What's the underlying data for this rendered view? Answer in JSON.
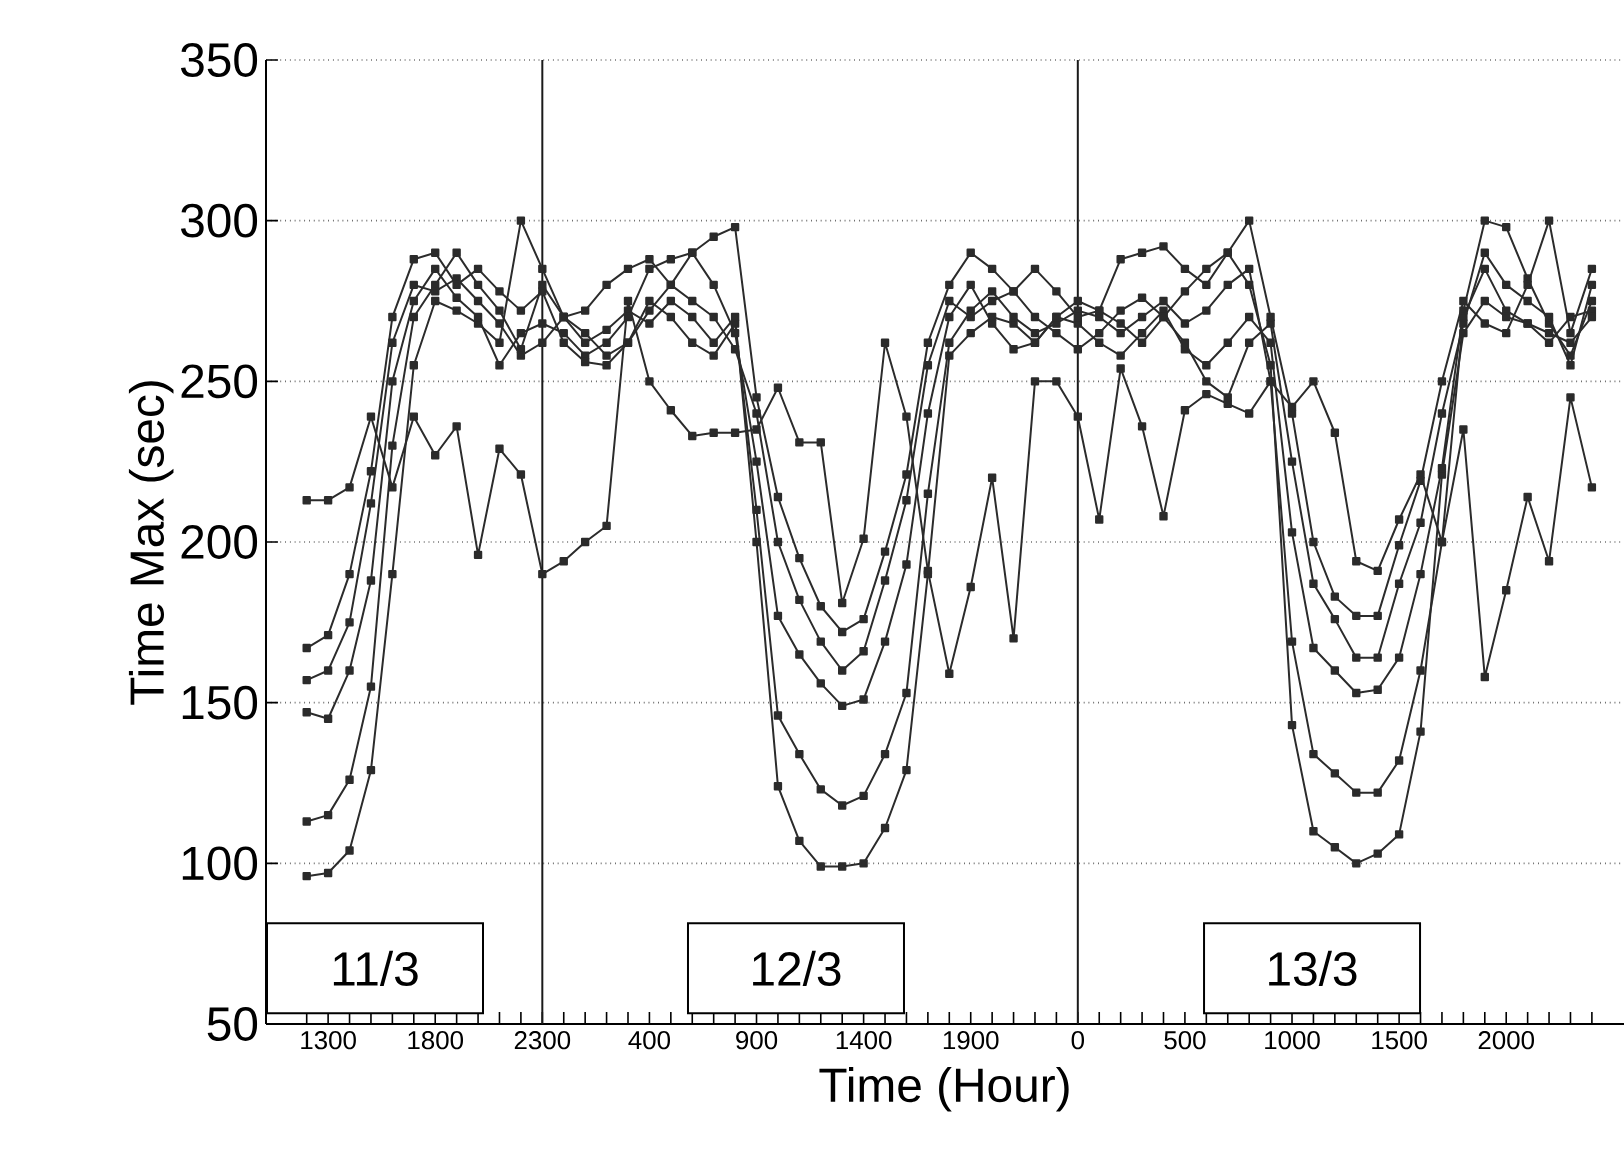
{
  "chart_data": {
    "type": "line",
    "xlabel": "Time (Hour)",
    "ylabel": "Time Max (sec)",
    "annotations": [
      "11/3",
      "12/3",
      "13/3"
    ],
    "categories": [
      null,
      "1300",
      null,
      null,
      null,
      null,
      "1800",
      null,
      null,
      null,
      null,
      "2300",
      null,
      null,
      null,
      null,
      "400",
      null,
      null,
      null,
      null,
      "900",
      null,
      null,
      null,
      null,
      "1400",
      null,
      null,
      null,
      null,
      "1900",
      null,
      null,
      null,
      null,
      "0",
      null,
      null,
      null,
      null,
      "500",
      null,
      null,
      null,
      null,
      "1000",
      null,
      null,
      null,
      null,
      "1500",
      null,
      null,
      null,
      null,
      "2000",
      null,
      null,
      null,
      null
    ],
    "series": [
      {
        "color": "#2b2b2b",
        "values": [
          213,
          213,
          217,
          239,
          217,
          239,
          227,
          236,
          196,
          229,
          221,
          190,
          194,
          200,
          205,
          275,
          250,
          241,
          233,
          234,
          234,
          235,
          248,
          231,
          231,
          181,
          201,
          262,
          239,
          191,
          159,
          186,
          220,
          170,
          250,
          250,
          239,
          207,
          254,
          236,
          208,
          241,
          246,
          243,
          240,
          250,
          242,
          250,
          234,
          194,
          191,
          207,
          221,
          200,
          235,
          158,
          185,
          214,
          194,
          245,
          217
        ]
      },
      {
        "color": "#2b2b2b",
        "values": [
          96,
          97,
          104,
          129,
          190,
          255,
          275,
          272,
          268,
          262,
          300,
          285,
          270,
          262,
          266,
          272,
          268,
          275,
          270,
          262,
          270,
          200,
          124,
          107,
          99,
          99,
          100,
          111,
          129,
          190,
          258,
          265,
          270,
          268,
          262,
          270,
          275,
          272,
          268,
          262,
          270,
          278,
          285,
          290,
          280,
          255,
          143,
          110,
          105,
          100,
          103,
          109,
          141,
          221,
          265,
          275,
          270,
          268,
          262,
          270,
          272
        ]
      },
      {
        "color": "#2b2b2b",
        "values": [
          113,
          115,
          126,
          155,
          230,
          270,
          280,
          290,
          280,
          272,
          260,
          280,
          270,
          265,
          258,
          262,
          275,
          270,
          262,
          258,
          268,
          210,
          146,
          134,
          123,
          118,
          121,
          134,
          153,
          215,
          262,
          272,
          278,
          270,
          265,
          268,
          272,
          270,
          265,
          270,
          275,
          268,
          272,
          280,
          285,
          250,
          169,
          134,
          128,
          122,
          122,
          132,
          160,
          200,
          270,
          285,
          272,
          268,
          265,
          262,
          270
        ]
      },
      {
        "color": "#2b2b2b",
        "values": [
          147,
          145,
          160,
          188,
          250,
          275,
          285,
          276,
          270,
          255,
          265,
          268,
          265,
          258,
          262,
          270,
          285,
          288,
          290,
          280,
          265,
          225,
          177,
          165,
          156,
          149,
          151,
          169,
          193,
          240,
          270,
          280,
          268,
          260,
          262,
          270,
          268,
          262,
          258,
          265,
          272,
          260,
          255,
          262,
          270,
          262,
          203,
          167,
          160,
          153,
          154,
          164,
          190,
          223,
          272,
          300,
          298,
          282,
          268,
          258,
          275
        ]
      },
      {
        "color": "#2b2b2b",
        "values": [
          157,
          160,
          175,
          212,
          262,
          280,
          278,
          282,
          275,
          268,
          258,
          262,
          270,
          272,
          280,
          285,
          288,
          280,
          275,
          270,
          260,
          240,
          200,
          182,
          169,
          160,
          166,
          188,
          213,
          255,
          275,
          270,
          275,
          278,
          270,
          265,
          260,
          265,
          272,
          276,
          270,
          262,
          250,
          245,
          262,
          268,
          225,
          187,
          176,
          164,
          164,
          187,
          206,
          240,
          268,
          290,
          280,
          275,
          270,
          255,
          280
        ]
      },
      {
        "color": "#2b2b2b",
        "values": [
          167,
          171,
          190,
          222,
          270,
          288,
          290,
          280,
          285,
          278,
          272,
          278,
          262,
          256,
          255,
          262,
          272,
          280,
          290,
          295,
          298,
          245,
          214,
          195,
          180,
          172,
          176,
          197,
          221,
          262,
          280,
          290,
          285,
          278,
          285,
          278,
          270,
          272,
          288,
          290,
          292,
          285,
          280,
          290,
          300,
          270,
          240,
          200,
          183,
          177,
          177,
          199,
          219,
          250,
          275,
          268,
          265,
          280,
          300,
          265,
          285
        ]
      }
    ],
    "ylim": [
      50,
      350
    ],
    "yticks": [
      50,
      100,
      150,
      200,
      250,
      300,
      350
    ],
    "ref_lines": [
      {
        "axis": "x",
        "value": "2300",
        "color": "#1a1a1a"
      },
      {
        "axis": "x",
        "value": "0",
        "color": "#1a1a1a"
      }
    ],
    "grid": "y",
    "marker": "square",
    "line_style": "solid"
  }
}
